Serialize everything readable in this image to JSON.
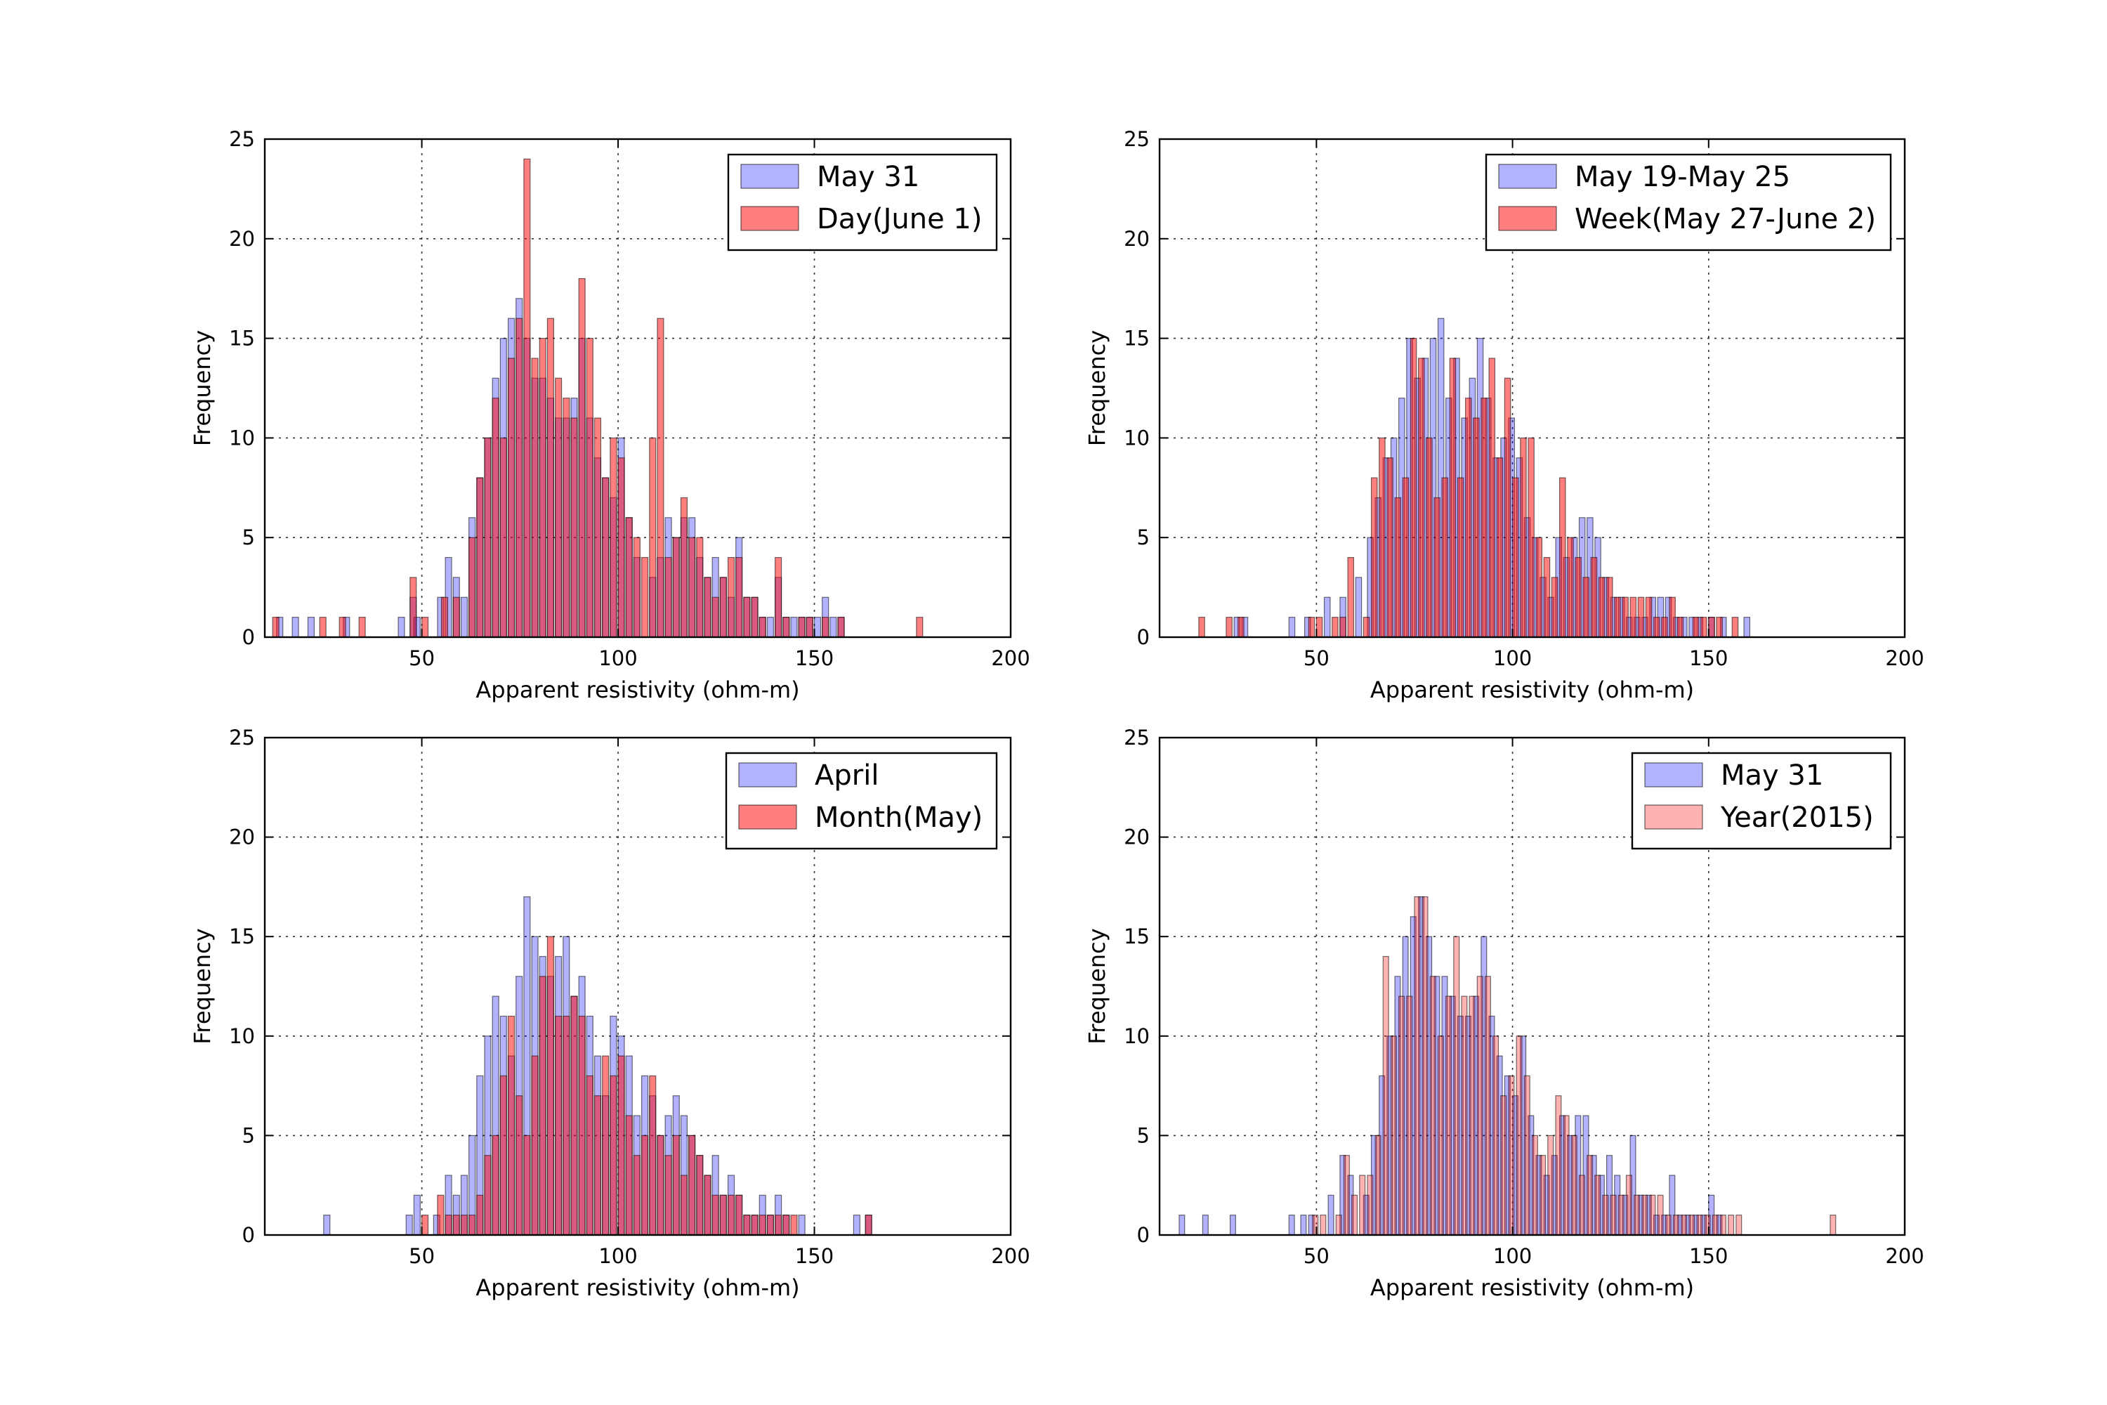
{
  "figure": {
    "background": "#ffffff"
  },
  "colors": {
    "blue": "#0000ff",
    "red": "#ff0000",
    "edge": "#000000"
  },
  "chart_data": [
    {
      "type": "bar",
      "xlabel": "Apparent resistivity (ohm-m)",
      "ylabel": "Frequency",
      "xlim": [
        10,
        200
      ],
      "ylim": [
        0,
        25
      ],
      "xticks": [
        50,
        100,
        150,
        200
      ],
      "yticks": [
        0,
        5,
        10,
        15,
        20,
        25
      ],
      "grid": true,
      "legend": "top-right",
      "bin_width": 1.6,
      "series": [
        {
          "name": "May 31",
          "color": "#0000ff",
          "alpha": 0.3,
          "x": [
            13,
            17,
            21,
            30,
            44,
            47,
            48,
            54,
            56,
            58,
            60,
            62,
            64,
            66,
            68,
            70,
            72,
            74,
            76,
            78,
            80,
            82,
            84,
            86,
            88,
            90,
            92,
            94,
            96,
            98,
            100,
            102,
            104,
            108,
            110,
            112,
            114,
            116,
            118,
            120,
            122,
            124,
            126,
            128,
            130,
            132,
            134,
            136,
            138,
            140,
            142,
            144,
            146,
            148,
            150,
            152,
            154,
            156
          ],
          "y": [
            1,
            1,
            1,
            1,
            1,
            2,
            1,
            2,
            4,
            3,
            2,
            6,
            8,
            10,
            13,
            15,
            16,
            17,
            15,
            13,
            13,
            12,
            11,
            11,
            12,
            15,
            11,
            9,
            8,
            7,
            10,
            6,
            4,
            3,
            4,
            6,
            5,
            6,
            6,
            4,
            3,
            4,
            3,
            2,
            5,
            2,
            2,
            1,
            1,
            3,
            1,
            1,
            1,
            1,
            1,
            2,
            1,
            1
          ]
        },
        {
          "name": "Day(June 1)",
          "color": "#ff0000",
          "alpha": 0.5,
          "x": [
            12,
            24,
            29,
            34,
            47,
            50,
            55,
            58,
            62,
            64,
            66,
            68,
            70,
            72,
            74,
            76,
            78,
            80,
            82,
            84,
            86,
            88,
            90,
            92,
            94,
            96,
            98,
            100,
            102,
            104,
            106,
            108,
            110,
            112,
            114,
            116,
            118,
            120,
            122,
            124,
            126,
            128,
            130,
            132,
            134,
            136,
            140,
            142,
            146,
            148,
            152,
            156,
            176
          ],
          "y": [
            1,
            1,
            1,
            1,
            3,
            1,
            2,
            2,
            5,
            8,
            10,
            12,
            10,
            14,
            16,
            24,
            14,
            15,
            16,
            13,
            12,
            11,
            18,
            15,
            11,
            8,
            10,
            9,
            6,
            5,
            4,
            10,
            16,
            4,
            5,
            7,
            5,
            5,
            3,
            2,
            3,
            4,
            4,
            2,
            2,
            1,
            4,
            1,
            1,
            1,
            1,
            1,
            1
          ]
        }
      ]
    },
    {
      "type": "bar",
      "xlabel": "Apparent resistivity (ohm-m)",
      "ylabel": "Frequency",
      "xlim": [
        10,
        200
      ],
      "ylim": [
        0,
        25
      ],
      "xticks": [
        50,
        100,
        150,
        200
      ],
      "yticks": [
        0,
        5,
        10,
        15,
        20,
        25
      ],
      "grid": true,
      "legend": "top-right",
      "bin_width": 1.5,
      "series": [
        {
          "name": "May 19-May 25",
          "color": "#0000ff",
          "alpha": 0.3,
          "x": [
            29,
            31,
            43,
            47,
            52,
            56,
            60,
            63,
            65,
            67,
            69,
            71,
            73,
            75,
            77,
            79,
            81,
            83,
            85,
            87,
            89,
            91,
            93,
            95,
            97,
            99,
            101,
            103,
            105,
            107,
            109,
            111,
            113,
            115,
            117,
            119,
            121,
            123,
            125,
            127,
            129,
            131,
            133,
            135,
            137,
            139,
            141,
            143,
            145,
            147,
            150,
            153,
            159
          ],
          "y": [
            1,
            1,
            1,
            1,
            2,
            2,
            3,
            5,
            7,
            9,
            10,
            12,
            15,
            13,
            14,
            15,
            16,
            12,
            14,
            11,
            13,
            15,
            12,
            9,
            10,
            11,
            9,
            6,
            5,
            3,
            2,
            5,
            4,
            5,
            6,
            6,
            5,
            3,
            2,
            2,
            1,
            1,
            1,
            2,
            2,
            2,
            1,
            1,
            1,
            1,
            1,
            1,
            1
          ]
        },
        {
          "name": "Week(May 27-June 2)",
          "color": "#ff0000",
          "alpha": 0.5,
          "x": [
            20,
            27,
            30,
            48,
            50,
            54,
            56,
            58,
            62,
            64,
            66,
            68,
            70,
            72,
            74,
            76,
            78,
            80,
            82,
            84,
            86,
            88,
            90,
            92,
            94,
            96,
            98,
            100,
            102,
            104,
            106,
            108,
            110,
            112,
            114,
            116,
            118,
            120,
            122,
            124,
            126,
            128,
            130,
            132,
            134,
            136,
            138,
            140,
            142,
            146,
            148,
            150,
            152,
            156
          ],
          "y": [
            1,
            1,
            1,
            1,
            1,
            1,
            1,
            4,
            1,
            8,
            10,
            9,
            7,
            8,
            15,
            14,
            10,
            7,
            8,
            14,
            8,
            12,
            11,
            12,
            14,
            9,
            13,
            8,
            10,
            10,
            5,
            4,
            3,
            8,
            5,
            4,
            3,
            4,
            3,
            3,
            2,
            2,
            2,
            2,
            2,
            1,
            1,
            2,
            1,
            1,
            1,
            1,
            1,
            1
          ]
        }
      ]
    },
    {
      "type": "bar",
      "xlabel": "Apparent resistivity (ohm-m)",
      "ylabel": "Frequency",
      "xlim": [
        10,
        200
      ],
      "ylim": [
        0,
        25
      ],
      "xticks": [
        50,
        100,
        150,
        200
      ],
      "yticks": [
        0,
        5,
        10,
        15,
        20,
        25
      ],
      "grid": true,
      "legend": "top-right",
      "bin_width": 1.6,
      "series": [
        {
          "name": "April",
          "color": "#0000ff",
          "alpha": 0.3,
          "x": [
            25,
            46,
            48,
            53,
            56,
            58,
            60,
            62,
            64,
            66,
            68,
            70,
            72,
            74,
            76,
            78,
            80,
            82,
            84,
            86,
            88,
            90,
            92,
            94,
            96,
            98,
            100,
            102,
            104,
            106,
            108,
            110,
            112,
            114,
            116,
            118,
            120,
            122,
            124,
            126,
            128,
            130,
            132,
            134,
            136,
            138,
            140,
            142,
            146,
            160,
            163
          ],
          "y": [
            1,
            1,
            2,
            1,
            3,
            2,
            3,
            5,
            8,
            10,
            12,
            11,
            9,
            13,
            17,
            15,
            14,
            13,
            14,
            15,
            12,
            13,
            11,
            9,
            7,
            11,
            10,
            9,
            6,
            8,
            7,
            5,
            6,
            7,
            6,
            5,
            4,
            3,
            4,
            2,
            3,
            2,
            1,
            1,
            2,
            1,
            2,
            1,
            1,
            1,
            1
          ]
        },
        {
          "name": "Month(May)",
          "color": "#ff0000",
          "alpha": 0.5,
          "x": [
            50,
            54,
            56,
            58,
            60,
            62,
            64,
            66,
            68,
            70,
            72,
            74,
            76,
            78,
            80,
            82,
            84,
            86,
            88,
            90,
            92,
            94,
            96,
            98,
            100,
            102,
            104,
            106,
            108,
            110,
            112,
            114,
            116,
            118,
            120,
            122,
            124,
            126,
            128,
            130,
            132,
            134,
            136,
            138,
            140,
            142,
            144,
            163
          ],
          "y": [
            1,
            2,
            1,
            1,
            1,
            1,
            2,
            4,
            5,
            8,
            11,
            7,
            5,
            9,
            13,
            15,
            11,
            11,
            12,
            11,
            8,
            7,
            9,
            8,
            9,
            6,
            4,
            5,
            8,
            5,
            4,
            5,
            3,
            5,
            4,
            3,
            2,
            2,
            2,
            2,
            1,
            1,
            1,
            1,
            1,
            1,
            1,
            1
          ]
        }
      ]
    },
    {
      "type": "bar",
      "xlabel": "Apparent resistivity (ohm-m)",
      "ylabel": "Frequency",
      "xlim": [
        10,
        200
      ],
      "ylim": [
        0,
        25
      ],
      "xticks": [
        50,
        100,
        150,
        200
      ],
      "yticks": [
        0,
        5,
        10,
        15,
        20,
        25
      ],
      "grid": true,
      "legend": "top-right",
      "bin_width": 1.4,
      "series": [
        {
          "name": "May 31",
          "color": "#0000ff",
          "alpha": 0.3,
          "x": [
            15,
            21,
            28,
            43,
            46,
            48,
            53,
            56,
            58,
            62,
            64,
            66,
            68,
            70,
            72,
            74,
            76,
            78,
            80,
            82,
            84,
            86,
            88,
            90,
            92,
            94,
            96,
            98,
            100,
            102,
            104,
            106,
            108,
            110,
            112,
            114,
            116,
            118,
            120,
            122,
            124,
            126,
            128,
            130,
            132,
            134,
            136,
            138,
            140,
            142,
            144,
            146,
            148,
            150,
            152
          ],
          "y": [
            1,
            1,
            1,
            1,
            1,
            1,
            2,
            4,
            3,
            2,
            5,
            8,
            10,
            13,
            15,
            16,
            17,
            15,
            13,
            13,
            12,
            11,
            11,
            12,
            15,
            11,
            9,
            8,
            7,
            10,
            6,
            4,
            3,
            4,
            6,
            5,
            6,
            6,
            4,
            3,
            4,
            3,
            2,
            5,
            2,
            2,
            1,
            1,
            3,
            1,
            1,
            1,
            1,
            2,
            1
          ]
        },
        {
          "name": "Year(2015)",
          "color": "#ff0000",
          "alpha": 0.3,
          "x": [
            49,
            51,
            55,
            57,
            59,
            61,
            63,
            65,
            67,
            69,
            71,
            73,
            75,
            77,
            79,
            81,
            83,
            85,
            87,
            89,
            91,
            93,
            95,
            97,
            99,
            101,
            103,
            105,
            107,
            109,
            111,
            113,
            115,
            117,
            119,
            121,
            123,
            125,
            127,
            129,
            131,
            133,
            135,
            137,
            139,
            141,
            143,
            145,
            147,
            149,
            151,
            153,
            155,
            157,
            181
          ],
          "y": [
            1,
            1,
            1,
            4,
            2,
            3,
            3,
            5,
            14,
            10,
            12,
            12,
            17,
            17,
            13,
            10,
            12,
            15,
            12,
            12,
            13,
            13,
            10,
            7,
            8,
            10,
            8,
            5,
            4,
            5,
            7,
            6,
            5,
            3,
            4,
            3,
            2,
            2,
            2,
            3,
            2,
            2,
            2,
            2,
            1,
            1,
            1,
            1,
            1,
            1,
            1,
            1,
            1,
            1,
            1
          ]
        }
      ]
    }
  ]
}
